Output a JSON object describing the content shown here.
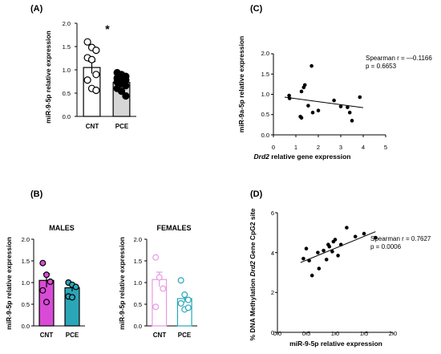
{
  "colors": {
    "axis": "#000000",
    "male": "#d94bd6",
    "male_light": "#e79ae4",
    "female_blue": "#2aa6b8",
    "female_blue_light": "#9bd3dc",
    "grey_bar": "#d6d6d6",
    "white": "#ffffff"
  },
  "chart_data": [
    {
      "panel": "(A)",
      "type": "bar",
      "categories": [
        "CNT",
        "PCE"
      ],
      "values": [
        1.05,
        0.73
      ],
      "errors": [
        0.13,
        0.06
      ],
      "ylabel": "miR-9-5p relative expression",
      "ylim": [
        0,
        2.0
      ],
      "yticks": [
        "0.0",
        "0.5",
        "1.0",
        "1.5",
        "2.0"
      ],
      "significance": "*",
      "points": [
        [
          1.6,
          1.48,
          1.42,
          1.26,
          1.22,
          0.9,
          0.78,
          0.6,
          0.56
        ],
        [
          0.94,
          0.9,
          0.86,
          0.82,
          0.78,
          0.78,
          0.74,
          0.7,
          0.66,
          0.6,
          0.54,
          0.44
        ]
      ]
    },
    {
      "panel": "(B)",
      "title": "MALES",
      "type": "bar",
      "categories": [
        "CNT",
        "PCE"
      ],
      "values": [
        1.05,
        0.88
      ],
      "errors": [
        0.16,
        0.08
      ],
      "ylabel": "miR-9-5p relative expression",
      "ylim": [
        0,
        2.0
      ],
      "yticks": [
        "0.0",
        "0.5",
        "1.0",
        "1.5",
        "2.0"
      ],
      "points": [
        [
          1.45,
          1.18,
          1.02,
          0.82,
          0.55
        ],
        [
          1.0,
          0.95,
          0.9,
          0.68,
          0.66
        ]
      ]
    },
    {
      "title": "FEMALES",
      "type": "bar",
      "categories": [
        "CNT",
        "PCE"
      ],
      "values": [
        1.07,
        0.63
      ],
      "errors": [
        0.17,
        0.09
      ],
      "ylabel": "miR-9-5p relative expression",
      "ylim": [
        0,
        2.0
      ],
      "yticks": [
        "0.0",
        "0.5",
        "1.0",
        "1.5",
        "2.0"
      ],
      "points": [
        [
          1.58,
          1.12,
          0.86,
          0.44
        ],
        [
          1.05,
          0.72,
          0.6,
          0.52,
          0.38,
          0.42
        ]
      ]
    },
    {
      "panel": "(C)",
      "type": "scatter",
      "x": [
        0.7,
        0.72,
        1.2,
        1.25,
        1.25,
        1.35,
        1.4,
        1.55,
        1.7,
        1.75,
        2.0,
        2.7,
        3.0,
        3.3,
        3.4,
        3.5,
        3.85
      ],
      "y": [
        0.97,
        0.9,
        0.45,
        0.42,
        1.07,
        1.17,
        1.23,
        0.72,
        1.7,
        0.55,
        0.6,
        0.85,
        0.7,
        0.68,
        0.55,
        0.35,
        0.93
      ],
      "trend": [
        [
          0.5,
          0.93
        ],
        [
          4.0,
          0.67
        ]
      ],
      "xlabel_italic": "Drd2",
      "xlabel_rest": " relative gene expression",
      "ylabel": "miR-9a-5p relative expression",
      "xlim": [
        0,
        5
      ],
      "ylim": [
        0.0,
        2.0
      ],
      "xticks": [
        "0",
        "1",
        "2",
        "3",
        "4",
        "5"
      ],
      "yticks": [
        "0.0",
        "0.5",
        "1.0",
        "1.5",
        "2.0"
      ],
      "annotation_line1": "Spearman r = —0.1166",
      "annotation_line2": "p =  0.6653"
    },
    {
      "panel": "(D)",
      "type": "scatter",
      "x": [
        0.45,
        0.5,
        0.55,
        0.6,
        0.7,
        0.72,
        0.8,
        0.85,
        0.88,
        0.9,
        0.95,
        0.97,
        1.0,
        1.05,
        1.1,
        1.2,
        1.35,
        1.5,
        1.7
      ],
      "y": [
        3.7,
        4.2,
        3.6,
        2.85,
        4.0,
        3.2,
        4.1,
        3.65,
        4.4,
        4.3,
        4.05,
        4.55,
        4.65,
        3.85,
        4.4,
        5.25,
        4.8,
        4.95,
        4.75
      ],
      "trend": [
        [
          0.4,
          3.5
        ],
        [
          1.7,
          5.05
        ]
      ],
      "xlabel": "miR-9-5p relative expression",
      "ylabel_before": "% DNA Methylation ",
      "ylabel_italic": "Drd2",
      "ylabel_after": " Gene CpG2 site",
      "xlim": [
        0,
        2.0
      ],
      "ylim": [
        0,
        6
      ],
      "xticks": [
        "0.0",
        "0.5",
        "1.0",
        "1.5",
        "2.0"
      ],
      "yticks": [
        "0",
        "2",
        "4",
        "6"
      ],
      "annotation_line1": "Spearman r = 0.7627",
      "annotation_line2": "p =  0.0006"
    }
  ]
}
